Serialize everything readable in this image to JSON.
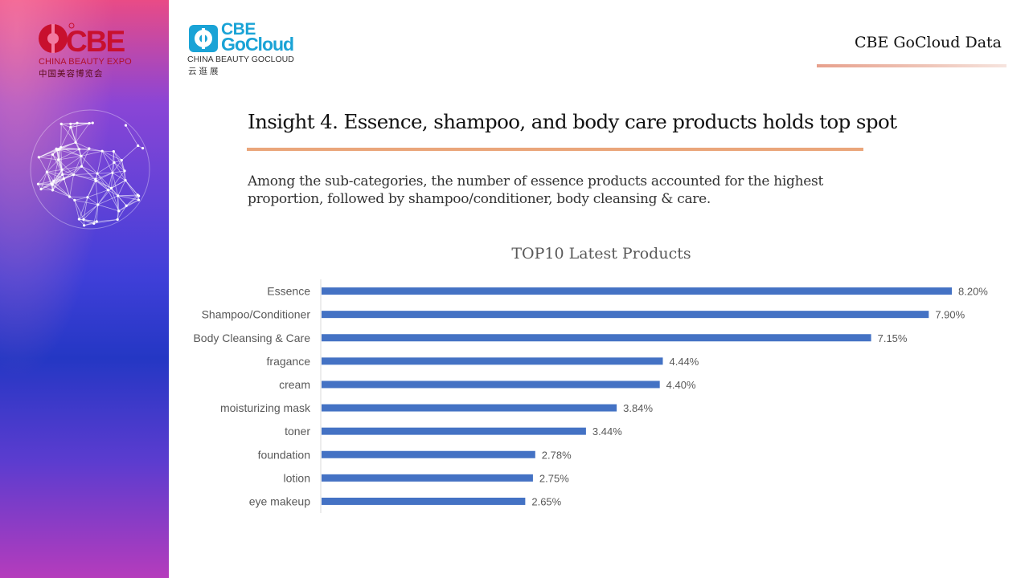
{
  "sidebar": {
    "logo_mark": "CBE",
    "logo_subtitle": "CHINA BEAUTY EXPO",
    "logo_cn": "中国美容博览会"
  },
  "gocloud_logo": {
    "line1": "CBE",
    "line2": "GoCloud",
    "subtitle": "CHINA BEAUTY GOCLOUD",
    "cn": "云逛展"
  },
  "header": {
    "title": "CBE GoCloud Data"
  },
  "insight": {
    "title": "Insight 4. Essence, shampoo, and body care products holds top spot",
    "description": "Among the sub-categories, the number of essence products accounted for the highest proportion, followed by shampoo/conditioner, body cleansing & care."
  },
  "colors": {
    "bar": "#4472c4",
    "accent_rule": "#eaa67b",
    "cbe_red": "#c8102e",
    "gocloud_blue": "#1aa3d6"
  },
  "chart_data": {
    "type": "bar",
    "orientation": "horizontal",
    "title": "TOP10 Latest Products",
    "categories": [
      "Essence",
      "Shampoo/Conditioner",
      "Body Cleansing & Care",
      "fragance",
      "cream",
      "moisturizing mask",
      "toner",
      "foundation",
      "lotion",
      "eye makeup"
    ],
    "values": [
      8.2,
      7.9,
      7.15,
      4.44,
      4.4,
      3.84,
      3.44,
      2.78,
      2.75,
      2.65
    ],
    "value_labels": [
      "8.20%",
      "7.90%",
      "7.15%",
      "4.44%",
      "4.40%",
      "3.84%",
      "3.44%",
      "2.78%",
      "2.75%",
      "2.65%"
    ],
    "xlim": [
      0,
      8.2
    ],
    "unit": "%",
    "grid": false,
    "legend": false
  }
}
